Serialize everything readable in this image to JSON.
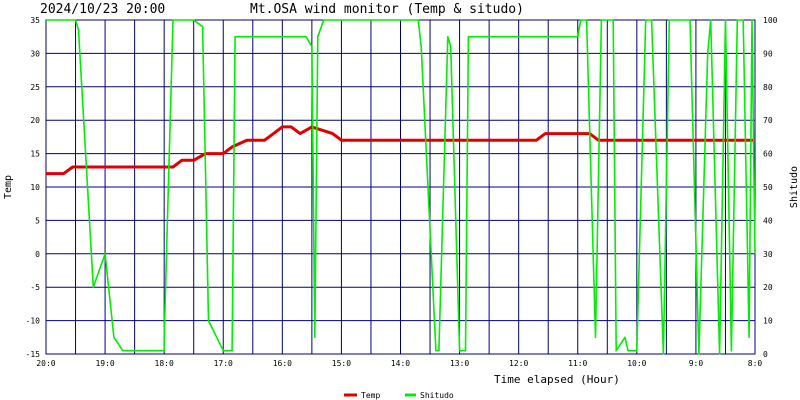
{
  "header": {
    "timestamp": "2024/10/23 20:00",
    "title": "Mt.OSA wind monitor (Temp & situdo)"
  },
  "colors": {
    "grid": "#00007f",
    "temp": "#e00000",
    "humidity": "#00ee00",
    "text": "#000000"
  },
  "chart_data": {
    "type": "line",
    "title": "Mt.OSA wind monitor (Temp & situdo)",
    "xlabel": "Time elapsed (Hour)",
    "ylabel": "Temp",
    "y2label": "Shitudo",
    "ylim": [
      -15,
      35
    ],
    "y2lim": [
      0,
      100
    ],
    "yticks": [
      -15,
      -10,
      -5,
      0,
      5,
      10,
      15,
      20,
      25,
      30,
      35
    ],
    "y2ticks": [
      0,
      10,
      20,
      30,
      40,
      50,
      60,
      70,
      80,
      90,
      100
    ],
    "xlim": [
      20,
      8
    ],
    "xticks": [
      {
        "value": 20,
        "label": "20:0"
      },
      {
        "value": 19,
        "label": "19:0"
      },
      {
        "value": 18,
        "label": "18:0"
      },
      {
        "value": 17,
        "label": "17:0"
      },
      {
        "value": 16,
        "label": "16:0"
      },
      {
        "value": 15,
        "label": "15:0"
      },
      {
        "value": 14,
        "label": "14:0"
      },
      {
        "value": 13,
        "label": "13:0"
      },
      {
        "value": 12,
        "label": "12:0"
      },
      {
        "value": 11,
        "label": "11:0"
      },
      {
        "value": 10,
        "label": "10:0"
      },
      {
        "value": 9,
        "label": "9:0"
      },
      {
        "value": 8,
        "label": "8:0"
      }
    ],
    "grid": true,
    "legend_position": "bottom",
    "series": [
      {
        "name": "Temp",
        "axis": "left",
        "color": "#e00000",
        "x": [
          20.0,
          19.7,
          19.55,
          19.0,
          18.5,
          18.0,
          17.85,
          17.7,
          17.5,
          17.3,
          17.0,
          16.85,
          16.6,
          16.3,
          16.15,
          16.0,
          15.85,
          15.7,
          15.5,
          15.15,
          15.0,
          14.5,
          14.0,
          13.5,
          13.0,
          12.5,
          12.0,
          11.7,
          11.55,
          11.0,
          10.8,
          10.65,
          10.0,
          9.0,
          8.0
        ],
        "y": [
          12,
          12,
          13,
          13,
          13,
          13,
          13,
          14,
          14,
          15,
          15,
          16,
          17,
          17,
          18,
          19,
          19,
          18,
          19,
          18,
          17,
          17,
          17,
          17,
          17,
          17,
          17,
          17,
          18,
          18,
          18,
          17,
          17,
          17,
          17
        ]
      },
      {
        "name": "Shitudo",
        "axis": "right",
        "color": "#00ee00",
        "x": [
          20.0,
          19.5,
          19.45,
          19.2,
          19.0,
          18.85,
          18.7,
          18.0,
          18.0,
          17.85,
          17.5,
          17.35,
          17.25,
          17.0,
          16.85,
          16.8,
          15.6,
          15.5,
          15.45,
          15.4,
          15.3,
          15.2,
          13.7,
          13.65,
          13.4,
          13.35,
          13.2,
          13.15,
          13.0,
          12.9,
          12.85,
          11.0,
          10.95,
          10.85,
          10.7,
          10.6,
          10.4,
          10.35,
          10.2,
          10.15,
          10.0,
          9.85,
          9.75,
          9.55,
          9.45,
          9.1,
          8.95,
          8.8,
          8.75,
          8.6,
          8.5,
          8.4,
          8.3,
          8.2,
          8.1,
          8.05,
          8.0
        ],
        "y": [
          100,
          100,
          97,
          20,
          30,
          5,
          1,
          1,
          5,
          100,
          100,
          98,
          10,
          1,
          1,
          95,
          95,
          92,
          5,
          95,
          100,
          100,
          100,
          92,
          1,
          1,
          95,
          92,
          1,
          1,
          95,
          95,
          100,
          100,
          5,
          100,
          100,
          1,
          5,
          1,
          1,
          100,
          100,
          0,
          100,
          100,
          0,
          90,
          100,
          0,
          100,
          1,
          100,
          100,
          5,
          100,
          30
        ]
      }
    ]
  }
}
